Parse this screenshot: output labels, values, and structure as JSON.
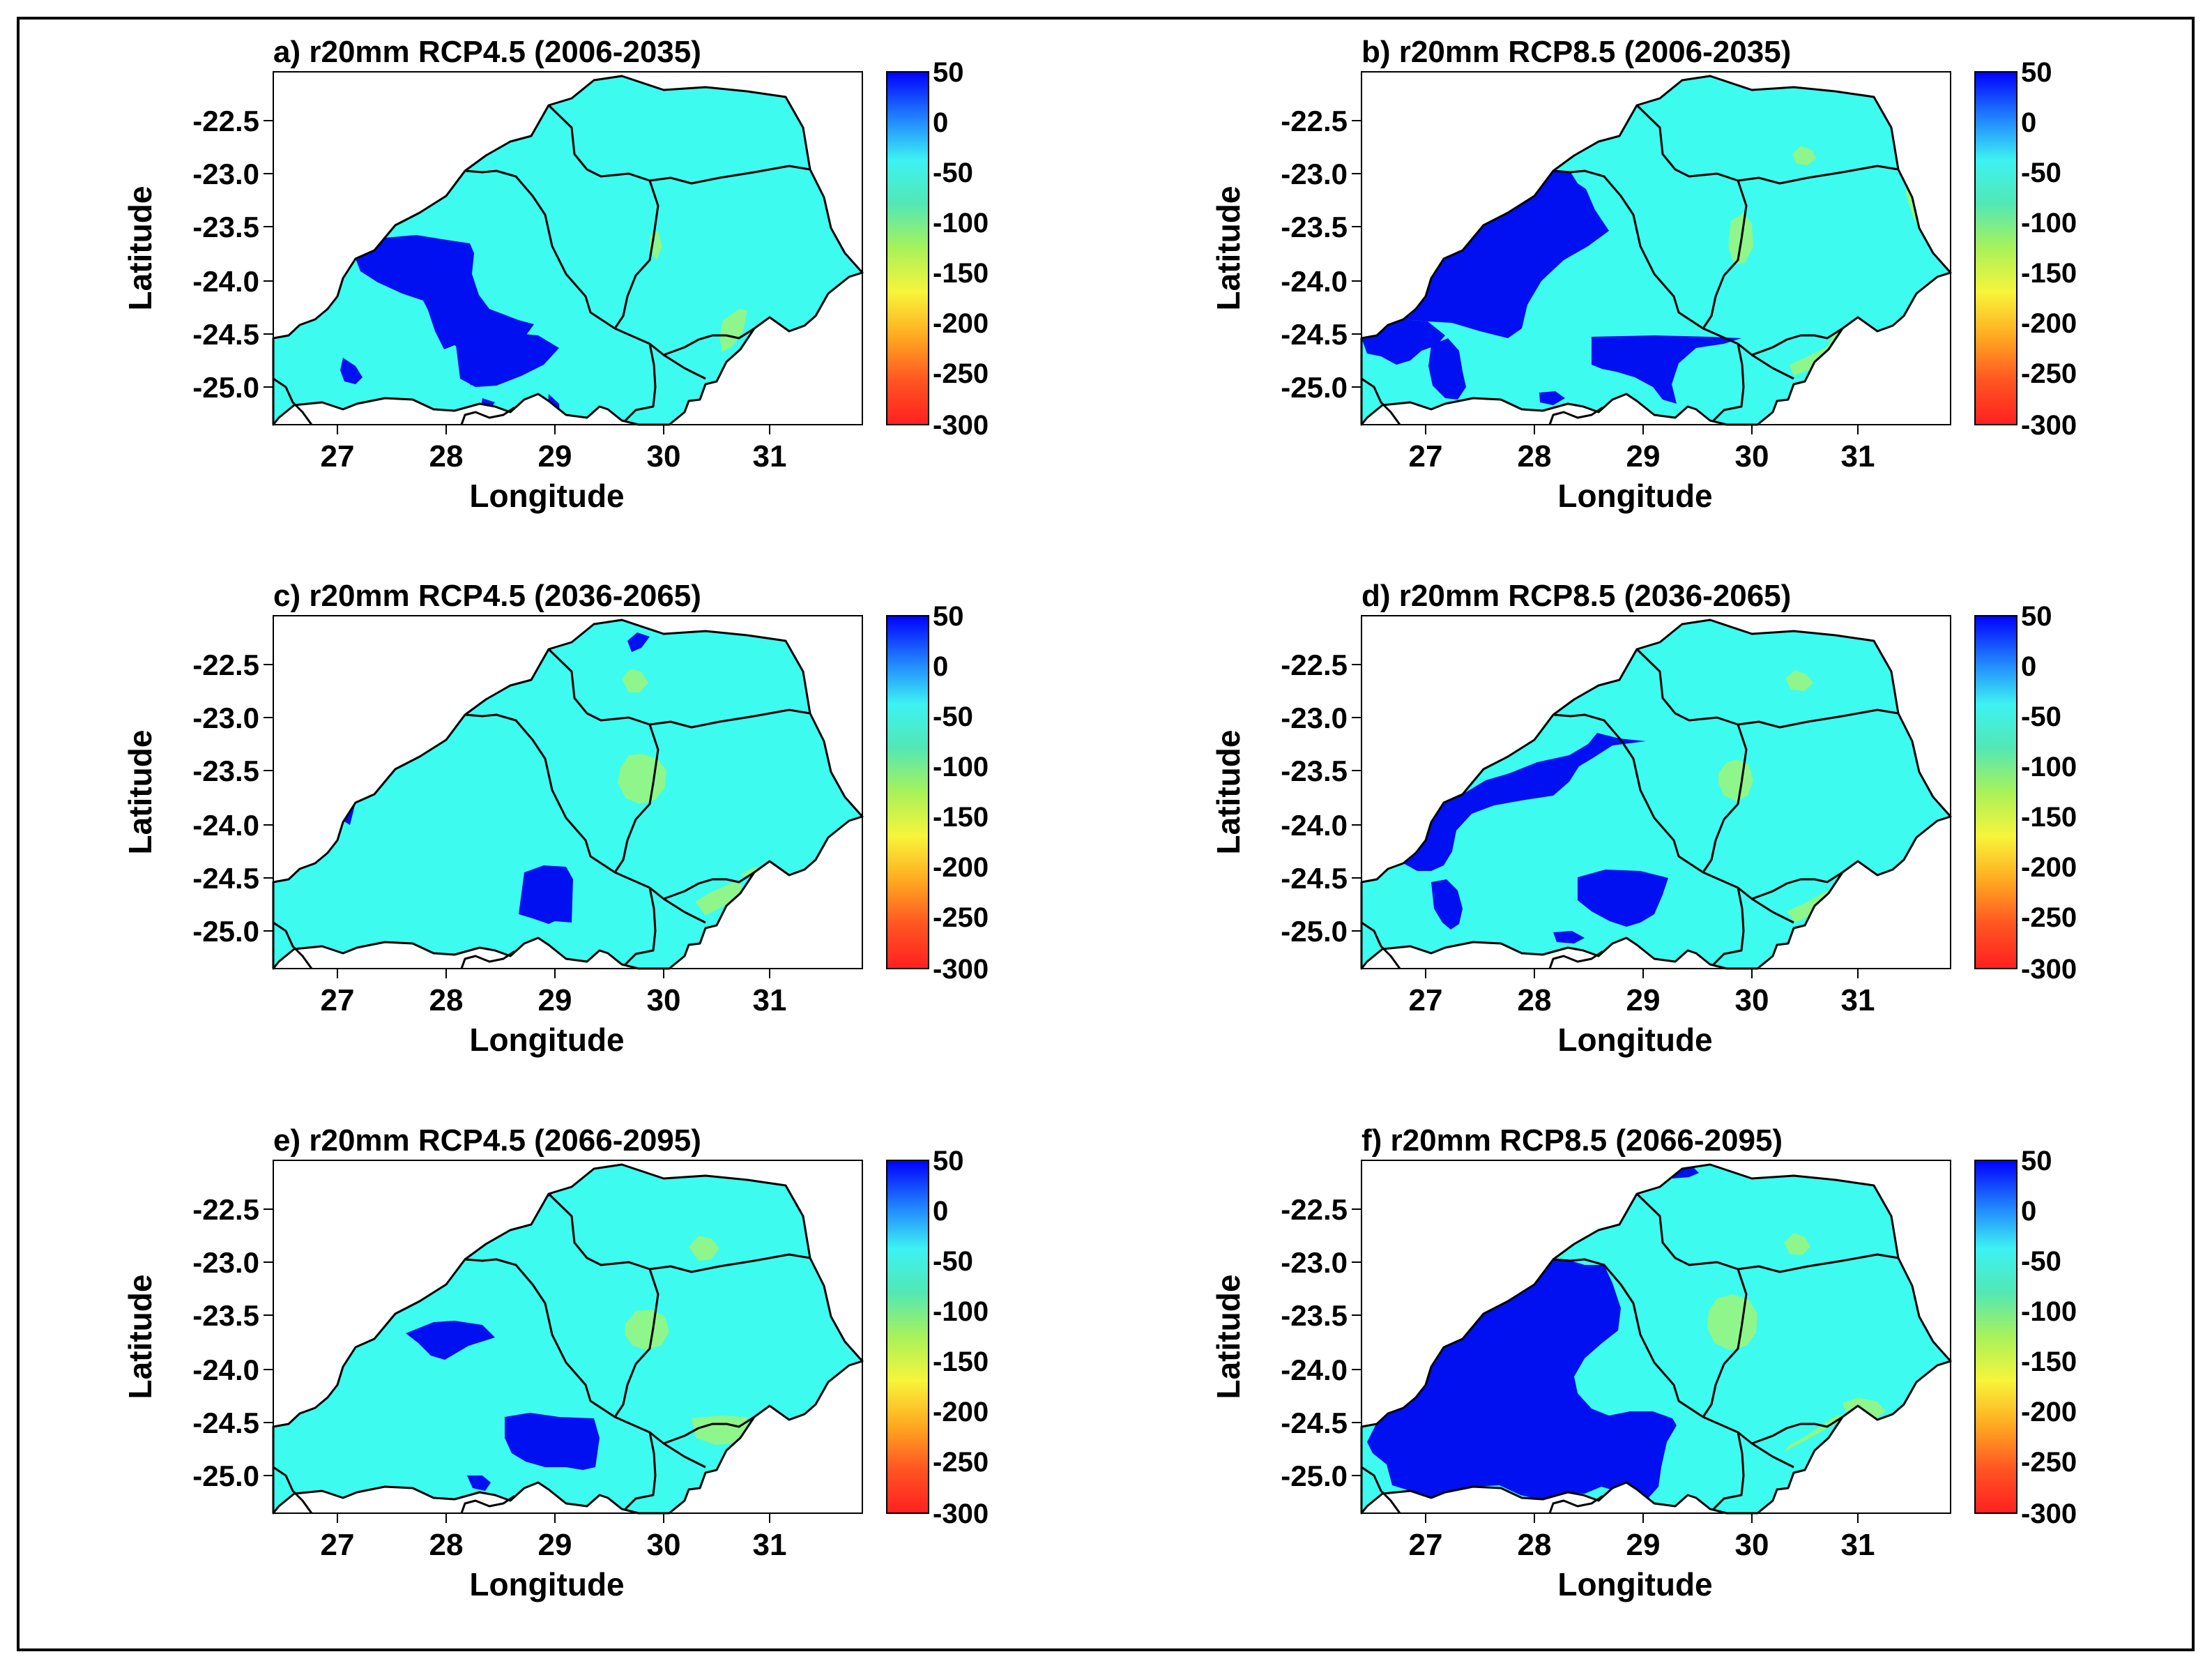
{
  "figure": {
    "colors": {
      "land": "#3dfbef",
      "wet": "#0010f0",
      "dry": "#8ef68a",
      "boundary": "#000000",
      "colorbar": [
        "#0000ff",
        "#1f7dff",
        "#3df2f2",
        "#52e8b4",
        "#a8f25a",
        "#f7f53a",
        "#ffaa20",
        "#ff5522",
        "#ff2020"
      ]
    },
    "colorbar_ticks": [
      "50",
      "0",
      "-50",
      "-100",
      "-150",
      "-200",
      "-250",
      "-300"
    ],
    "y_ticks": [
      "-22.5",
      "-23.0",
      "-23.5",
      "-24.0",
      "-24.5",
      "-25.0"
    ],
    "x_ticks": [
      "27",
      "28",
      "29",
      "30",
      "31"
    ],
    "xlabel": "Longitude",
    "ylabel": "Latitude",
    "panels": [
      {
        "id": "a",
        "title": "a) r20mm RCP4.5 (2006-2035)",
        "variant": "a"
      },
      {
        "id": "b",
        "title": "b) r20mm RCP8.5 (2006-2035)",
        "variant": "b"
      },
      {
        "id": "c",
        "title": "c) r20mm RCP4.5 (2036-2065)",
        "variant": "c"
      },
      {
        "id": "d",
        "title": "d) r20mm RCP8.5 (2036-2065)",
        "variant": "d"
      },
      {
        "id": "e",
        "title": "e) r20mm RCP4.5 (2066-2095)",
        "variant": "e"
      },
      {
        "id": "f",
        "title": "f) r20mm RCP8.5 (2066-2095)",
        "variant": "f"
      }
    ]
  }
}
